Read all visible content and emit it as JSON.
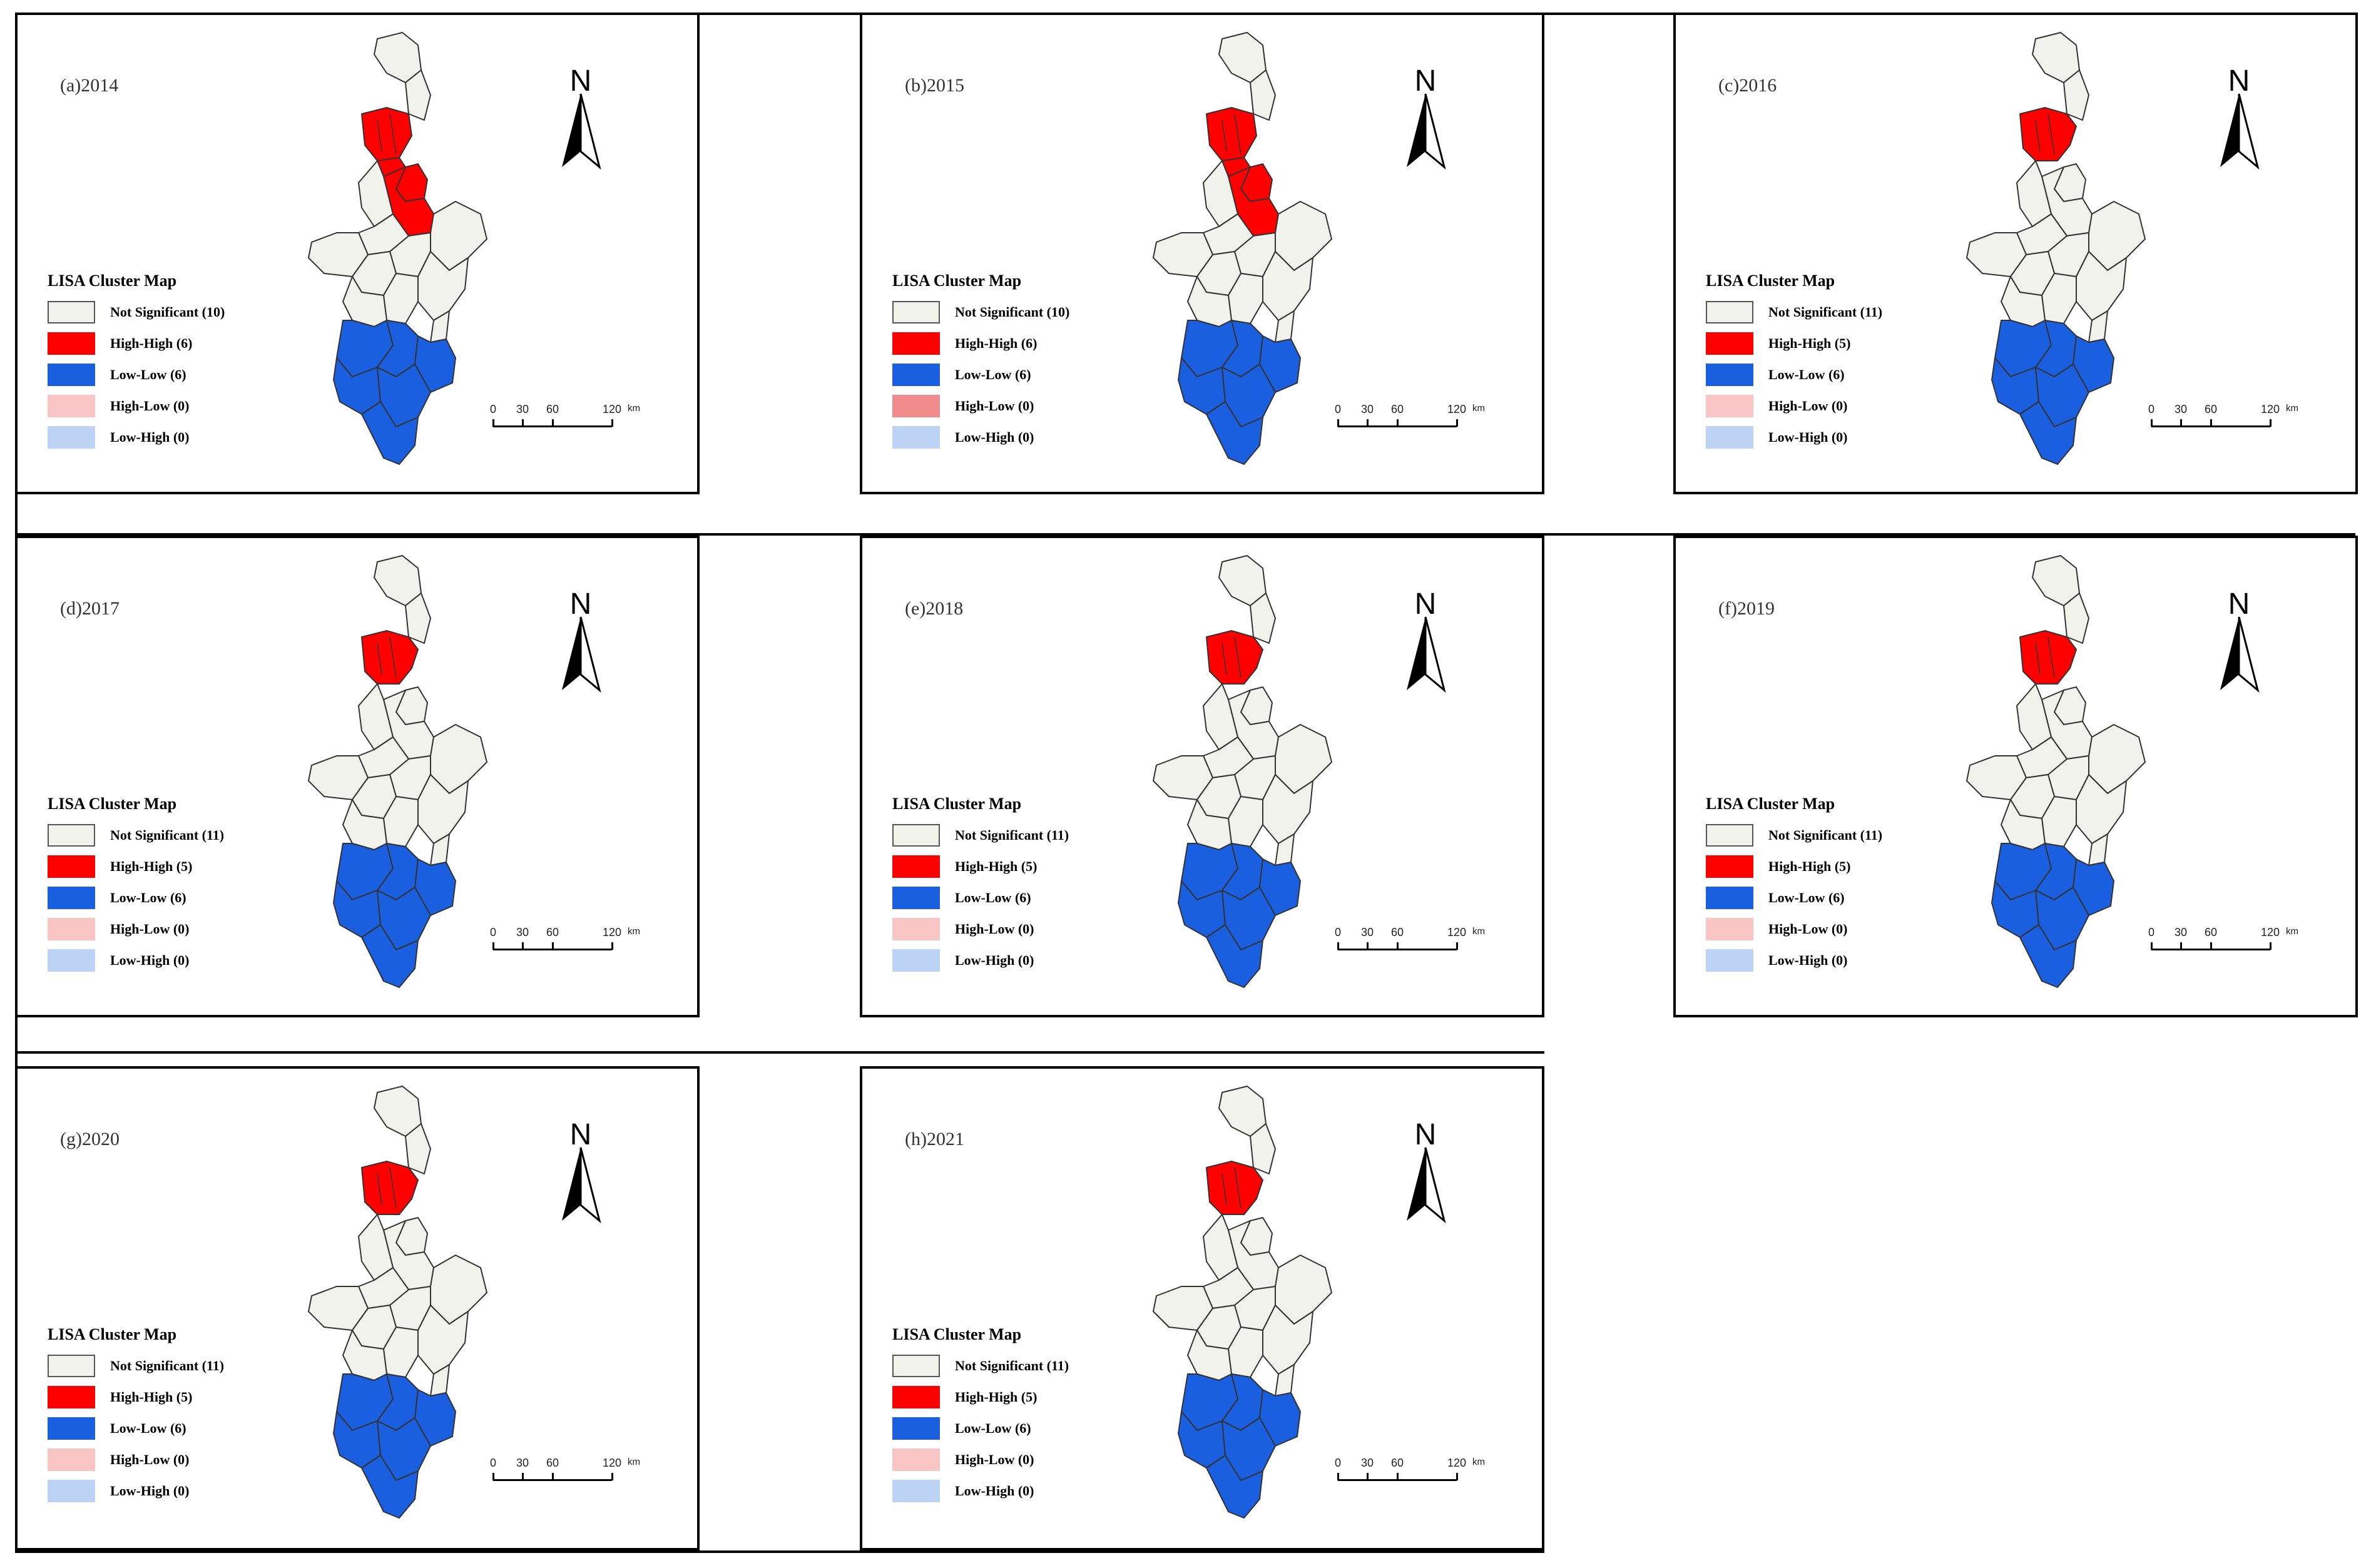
{
  "colors": {
    "not_significant": "#f2f2ec",
    "high_high": "#ff0000",
    "low_low": "#1a5fe0",
    "high_low": "#f9c4c4",
    "high_low_alt": "#f28c8c",
    "low_high": "#bcd3f6",
    "boundary": "#333333"
  },
  "legend_title": "LISA Cluster Map",
  "scale_bar": {
    "ticks": [
      "0",
      "30",
      "60",
      "120"
    ],
    "unit": "km"
  },
  "north_label": "N",
  "panels": [
    {
      "title": "(a)2014",
      "high_high_regions": 6,
      "legend": [
        "Not Significant (10)",
        "High-High (6)",
        "Low-Low (6)",
        "High-Low (0)",
        "Low-High (0)"
      ]
    },
    {
      "title": "(b)2015",
      "high_high_regions": 6,
      "legend": [
        "Not Significant (10)",
        "High-High (6)",
        "Low-Low (6)",
        "High-Low (0)",
        "Low-High (0)"
      ]
    },
    {
      "title": "(c)2016",
      "high_high_regions": 5,
      "legend": [
        "Not Significant (11)",
        "High-High (5)",
        "Low-Low (6)",
        "High-Low (0)",
        "Low-High (0)"
      ]
    },
    {
      "title": "(d)2017",
      "high_high_regions": 5,
      "legend": [
        "Not Significant (11)",
        "High-High (5)",
        "Low-Low (6)",
        "High-Low (0)",
        "Low-High (0)"
      ]
    },
    {
      "title": "(e)2018",
      "high_high_regions": 5,
      "legend": [
        "Not Significant (11)",
        "High-High (5)",
        "Low-Low (6)",
        "High-Low (0)",
        "Low-High (0)"
      ]
    },
    {
      "title": "(f)2019",
      "high_high_regions": 5,
      "legend": [
        "Not Significant (11)",
        "High-High (5)",
        "Low-Low (6)",
        "High-Low (0)",
        "Low-High (0)"
      ]
    },
    {
      "title": "(g)2020",
      "high_high_regions": 5,
      "legend": [
        "Not Significant (11)",
        "High-High (5)",
        "Low-Low (6)",
        "High-Low (0)",
        "Low-High (0)"
      ]
    },
    {
      "title": "(h)2021",
      "high_high_regions": 5,
      "legend": [
        "Not Significant (11)",
        "High-High (5)",
        "Low-Low (6)",
        "High-Low (0)",
        "Low-High (0)"
      ]
    }
  ]
}
